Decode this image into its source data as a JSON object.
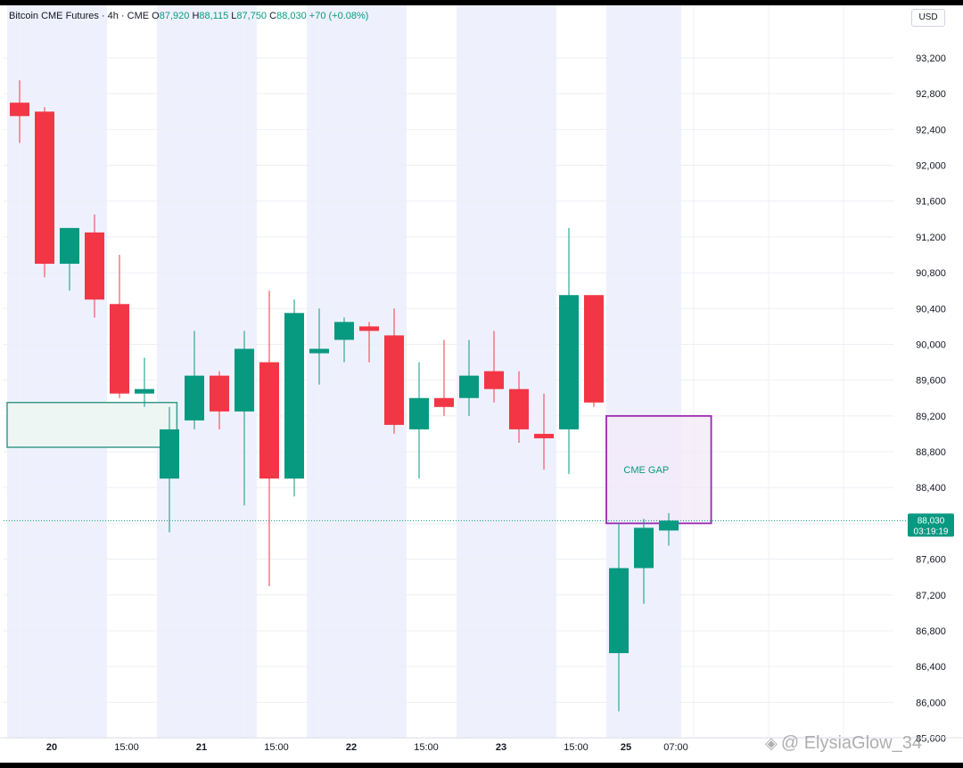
{
  "legend": {
    "symbol": "Bitcoin CME Futures · 4h · CME",
    "open_label": "O",
    "open": "87,920",
    "high_label": "H",
    "high": "88,115",
    "low_label": "L",
    "low": "87,750",
    "close_label": "C",
    "close": "88,030",
    "change": "+70 (+0.08%)"
  },
  "currency": "USD",
  "watermark": "@ ElysiaGlow_34",
  "colors": {
    "up": "#089981",
    "down": "#f23645",
    "session_band": "#eef1fd",
    "gap_border": "#9c27b0",
    "gap_fill": "#f3e8f7",
    "zone_border": "#3a9a8a",
    "zone_fill": "#eef6f4",
    "price_label_bg": "#089981"
  },
  "chart_data": {
    "type": "candlestick",
    "timeframe": "4h",
    "ylim": [
      85400,
      93600
    ],
    "y_ticks": [
      93200,
      92800,
      92400,
      92000,
      91600,
      91200,
      90800,
      90400,
      90000,
      89600,
      89200,
      88800,
      88400,
      88000,
      87600,
      87200,
      86800,
      86400,
      86000,
      85600
    ],
    "y_tick_labels": [
      "93,200",
      "92,800",
      "92,400",
      "92,000",
      "91,600",
      "91,200",
      "90,800",
      "90,400",
      "90,000",
      "89,600",
      "89,200",
      "88,800",
      "88,400",
      "88,000",
      "87,600",
      "87,200",
      "86,800",
      "86,400",
      "86,000",
      "85,600"
    ],
    "x_labels": [
      {
        "index": 1,
        "label": "20",
        "bold": true
      },
      {
        "index": 4,
        "label": "15:00",
        "bold": false
      },
      {
        "index": 7,
        "label": "21",
        "bold": true
      },
      {
        "index": 10,
        "label": "15:00",
        "bold": false
      },
      {
        "index": 13,
        "label": "22",
        "bold": true
      },
      {
        "index": 16,
        "label": "15:00",
        "bold": false
      },
      {
        "index": 19,
        "label": "23",
        "bold": true
      },
      {
        "index": 22,
        "label": "15:00",
        "bold": false
      },
      {
        "index": 24,
        "label": "25",
        "bold": true
      },
      {
        "index": 26,
        "label": "07:00",
        "bold": false
      }
    ],
    "grid": true,
    "session_bands": [
      [
        -0.5,
        3.5
      ],
      [
        5.5,
        9.5
      ],
      [
        11.5,
        15.5
      ],
      [
        17.5,
        21.5
      ],
      [
        23.5,
        26.5
      ]
    ],
    "candles": [
      {
        "i": 0,
        "o": 92700,
        "h": 92950,
        "l": 92250,
        "c": 92550
      },
      {
        "i": 1,
        "o": 92600,
        "h": 92650,
        "l": 90750,
        "c": 90900
      },
      {
        "i": 2,
        "o": 90900,
        "h": 91300,
        "l": 90600,
        "c": 91300
      },
      {
        "i": 3,
        "o": 91250,
        "h": 91450,
        "l": 90300,
        "c": 90500
      },
      {
        "i": 4,
        "o": 90450,
        "h": 91000,
        "l": 89400,
        "c": 89450
      },
      {
        "i": 5,
        "o": 89450,
        "h": 89850,
        "l": 89300,
        "c": 89500
      },
      {
        "i": 6,
        "o": 88500,
        "h": 89300,
        "l": 87900,
        "c": 89050
      },
      {
        "i": 7,
        "o": 89150,
        "h": 90150,
        "l": 89050,
        "c": 89650
      },
      {
        "i": 8,
        "o": 89650,
        "h": 89700,
        "l": 89050,
        "c": 89250
      },
      {
        "i": 9,
        "o": 89250,
        "h": 90150,
        "l": 88200,
        "c": 89950
      },
      {
        "i": 10,
        "o": 89800,
        "h": 90600,
        "l": 87300,
        "c": 88500
      },
      {
        "i": 11,
        "o": 88500,
        "h": 90500,
        "l": 88300,
        "c": 90350
      },
      {
        "i": 12,
        "o": 89900,
        "h": 90400,
        "l": 89550,
        "c": 89950
      },
      {
        "i": 13,
        "o": 90050,
        "h": 90300,
        "l": 89800,
        "c": 90250
      },
      {
        "i": 14,
        "o": 90200,
        "h": 90250,
        "l": 89800,
        "c": 90150
      },
      {
        "i": 15,
        "o": 90100,
        "h": 90400,
        "l": 89000,
        "c": 89100
      },
      {
        "i": 16,
        "o": 89050,
        "h": 89800,
        "l": 88500,
        "c": 89400
      },
      {
        "i": 17,
        "o": 89400,
        "h": 90050,
        "l": 89200,
        "c": 89300
      },
      {
        "i": 18,
        "o": 89400,
        "h": 90050,
        "l": 89200,
        "c": 89650
      },
      {
        "i": 19,
        "o": 89700,
        "h": 90150,
        "l": 89350,
        "c": 89500
      },
      {
        "i": 20,
        "o": 89500,
        "h": 89700,
        "l": 88900,
        "c": 89050
      },
      {
        "i": 21,
        "o": 89000,
        "h": 89450,
        "l": 88600,
        "c": 88950
      },
      {
        "i": 22,
        "o": 89050,
        "h": 91300,
        "l": 88550,
        "c": 90550
      },
      {
        "i": 23,
        "o": 90550,
        "h": 90550,
        "l": 89300,
        "c": 89350
      },
      {
        "i": 24,
        "o": 86550,
        "h": 88000,
        "l": 85900,
        "c": 87500
      },
      {
        "i": 25,
        "o": 87500,
        "h": 88050,
        "l": 87100,
        "c": 87950
      },
      {
        "i": 26,
        "o": 87920,
        "h": 88115,
        "l": 87750,
        "c": 88030
      }
    ],
    "zones": [
      {
        "name": "",
        "x_from": -0.5,
        "x_to": 6.3,
        "y_from": 89350,
        "y_to": 88850,
        "kind": "support"
      }
    ],
    "gap": {
      "label": "CME GAP",
      "x_from": 23.5,
      "x_to": 27.7,
      "y_from": 89200,
      "y_to": 88000
    },
    "last_price": {
      "value": 88030,
      "label": "88,030",
      "countdown": "03:19:19"
    }
  }
}
